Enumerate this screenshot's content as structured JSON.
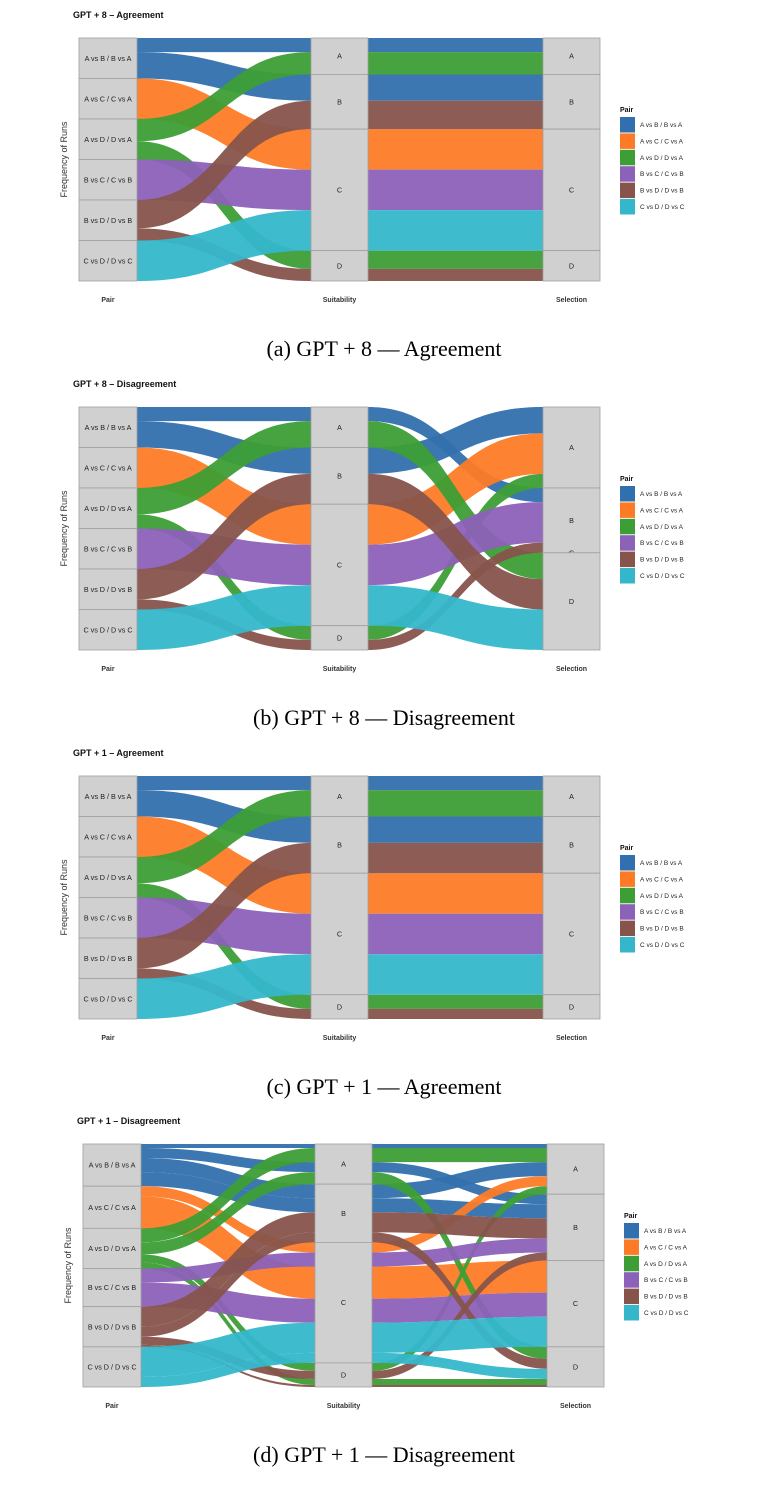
{
  "colors": {
    "A vs B / B vs A": "#3170ae",
    "A vs C / C vs A": "#fd7b27",
    "A vs D / D vs A": "#3d9e35",
    "B vs C / C vs B": "#8c61b8",
    "B vs D / D vs B": "#87544c",
    "C vs D / D vs C": "#35b7cb"
  },
  "captions": [
    "(a) GPT + 8 — Agreement",
    "(b) GPT + 8 — Disagreement",
    "(c) GPT + 1 — Agreement",
    "(d) GPT + 1 — Disagreement"
  ],
  "chart_data": [
    {
      "type": "alluvial",
      "title": "GPT + 8 – Agreement",
      "ylabel": "Frequency of Runs",
      "axes": [
        "Pair",
        "Suitability",
        "Selection"
      ],
      "legend": {
        "title": "Pair",
        "placement": "right"
      },
      "pairs": [
        "A vs B / B vs A",
        "A vs C / C vs A",
        "A vs D / D vs A",
        "B vs C / C vs B",
        "B vs D / D vs B",
        "C vs D / D vs C"
      ],
      "options": [
        "A",
        "B",
        "C",
        "D"
      ],
      "flows": [
        {
          "pair": "A vs B / B vs A",
          "suitability": "A",
          "selection": "A",
          "count": 7
        },
        {
          "pair": "A vs B / B vs A",
          "suitability": "B",
          "selection": "B",
          "count": 13
        },
        {
          "pair": "A vs C / C vs A",
          "suitability": "C",
          "selection": "C",
          "count": 20
        },
        {
          "pair": "A vs D / D vs A",
          "suitability": "A",
          "selection": "A",
          "count": 11
        },
        {
          "pair": "A vs D / D vs A",
          "suitability": "D",
          "selection": "D",
          "count": 9
        },
        {
          "pair": "B vs C / C vs B",
          "suitability": "C",
          "selection": "C",
          "count": 20
        },
        {
          "pair": "B vs D / D vs B",
          "suitability": "B",
          "selection": "B",
          "count": 14
        },
        {
          "pair": "B vs D / D vs B",
          "suitability": "D",
          "selection": "D",
          "count": 6
        },
        {
          "pair": "C vs D / D vs C",
          "suitability": "C",
          "selection": "C",
          "count": 20
        }
      ]
    },
    {
      "type": "alluvial",
      "title": "GPT + 8 – Disagreement",
      "ylabel": "Frequency of Runs",
      "axes": [
        "Pair",
        "Suitability",
        "Selection"
      ],
      "legend": {
        "title": "Pair",
        "placement": "right"
      },
      "pairs": [
        "A vs B / B vs A",
        "A vs C / C vs A",
        "A vs D / D vs A",
        "B vs C / C vs B",
        "B vs D / D vs B",
        "C vs D / D vs C"
      ],
      "options": [
        "A",
        "B",
        "C",
        "D"
      ],
      "flows": [
        {
          "pair": "A vs B / B vs A",
          "suitability": "A",
          "selection": "B",
          "count": 7
        },
        {
          "pair": "A vs B / B vs A",
          "suitability": "B",
          "selection": "A",
          "count": 13
        },
        {
          "pair": "A vs C / C vs A",
          "suitability": "C",
          "selection": "A",
          "count": 20
        },
        {
          "pair": "A vs D / D vs A",
          "suitability": "A",
          "selection": "D",
          "count": 13
        },
        {
          "pair": "A vs D / D vs A",
          "suitability": "D",
          "selection": "A",
          "count": 7
        },
        {
          "pair": "B vs C / C vs B",
          "suitability": "C",
          "selection": "B",
          "count": 20
        },
        {
          "pair": "B vs D / D vs B",
          "suitability": "B",
          "selection": "D",
          "count": 15
        },
        {
          "pair": "B vs D / D vs B",
          "suitability": "D",
          "selection": "B",
          "count": 5
        },
        {
          "pair": "C vs D / D vs C",
          "suitability": "C",
          "selection": "D",
          "count": 20
        }
      ]
    },
    {
      "type": "alluvial",
      "title": "GPT + 1 – Agreement",
      "ylabel": "Frequency of Runs",
      "axes": [
        "Pair",
        "Suitability",
        "Selection"
      ],
      "legend": {
        "title": "Pair",
        "placement": "right"
      },
      "pairs": [
        "A vs B / B vs A",
        "A vs C / C vs A",
        "A vs D / D vs A",
        "B vs C / C vs B",
        "B vs D / D vs B",
        "C vs D / D vs C"
      ],
      "options": [
        "A",
        "B",
        "C",
        "D"
      ],
      "flows": [
        {
          "pair": "A vs B / B vs A",
          "suitability": "A",
          "selection": "A",
          "count": 7
        },
        {
          "pair": "A vs B / B vs A",
          "suitability": "B",
          "selection": "B",
          "count": 13
        },
        {
          "pair": "A vs C / C vs A",
          "suitability": "C",
          "selection": "C",
          "count": 20
        },
        {
          "pair": "A vs D / D vs A",
          "suitability": "A",
          "selection": "A",
          "count": 13
        },
        {
          "pair": "A vs D / D vs A",
          "suitability": "D",
          "selection": "D",
          "count": 7
        },
        {
          "pair": "B vs C / C vs B",
          "suitability": "C",
          "selection": "C",
          "count": 20
        },
        {
          "pair": "B vs D / D vs B",
          "suitability": "B",
          "selection": "B",
          "count": 15
        },
        {
          "pair": "B vs D / D vs B",
          "suitability": "D",
          "selection": "D",
          "count": 5
        },
        {
          "pair": "C vs D / D vs C",
          "suitability": "C",
          "selection": "C",
          "count": 20
        }
      ]
    },
    {
      "type": "alluvial",
      "title": "GPT + 1 – Disagreement",
      "ylabel": "Frequency of Runs",
      "axes": [
        "Pair",
        "Suitability",
        "Selection"
      ],
      "legend": {
        "title": "Pair",
        "placement": "right"
      },
      "pairs": [
        "A vs B / B vs A",
        "A vs C / C vs A",
        "A vs D / D vs A",
        "B vs C / C vs B",
        "B vs D / D vs B",
        "C vs D / D vs C"
      ],
      "options": [
        "A",
        "B",
        "C",
        "D"
      ],
      "flows": [
        {
          "pair": "A vs B / B vs A",
          "suitability": "A",
          "selection": "A",
          "count": 2
        },
        {
          "pair": "A vs B / B vs A",
          "suitability": "A",
          "selection": "B",
          "count": 5
        },
        {
          "pair": "A vs B / B vs A",
          "suitability": "B",
          "selection": "A",
          "count": 7
        },
        {
          "pair": "A vs B / B vs A",
          "suitability": "B",
          "selection": "B",
          "count": 7
        },
        {
          "pair": "A vs C / C vs A",
          "suitability": "C",
          "selection": "A",
          "count": 5
        },
        {
          "pair": "A vs C / C vs A",
          "suitability": "C",
          "selection": "C",
          "count": 16
        },
        {
          "pair": "A vs D / D vs A",
          "suitability": "A",
          "selection": "A",
          "count": 7
        },
        {
          "pair": "A vs D / D vs A",
          "suitability": "A",
          "selection": "D",
          "count": 6
        },
        {
          "pair": "A vs D / D vs A",
          "suitability": "D",
          "selection": "A",
          "count": 4
        },
        {
          "pair": "A vs D / D vs A",
          "suitability": "D",
          "selection": "D",
          "count": 3
        },
        {
          "pair": "B vs C / C vs B",
          "suitability": "C",
          "selection": "B",
          "count": 7
        },
        {
          "pair": "B vs C / C vs B",
          "suitability": "C",
          "selection": "C",
          "count": 12
        },
        {
          "pair": "B vs D / D vs B",
          "suitability": "B",
          "selection": "B",
          "count": 10
        },
        {
          "pair": "B vs D / D vs B",
          "suitability": "B",
          "selection": "D",
          "count": 5
        },
        {
          "pair": "B vs D / D vs B",
          "suitability": "D",
          "selection": "B",
          "count": 4
        },
        {
          "pair": "B vs D / D vs B",
          "suitability": "D",
          "selection": "D",
          "count": 1
        },
        {
          "pair": "C vs D / D vs C",
          "suitability": "C",
          "selection": "C",
          "count": 15
        },
        {
          "pair": "C vs D / D vs C",
          "suitability": "C",
          "selection": "D",
          "count": 5
        }
      ]
    }
  ]
}
